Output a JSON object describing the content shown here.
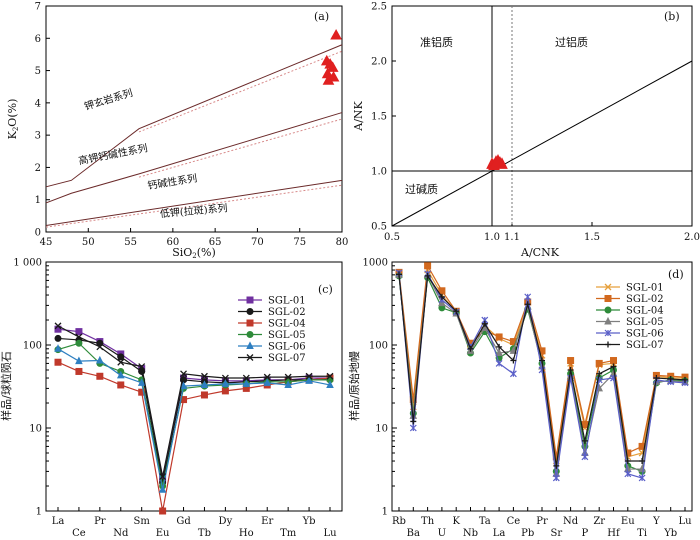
{
  "chart_data": [
    {
      "panel": "(a)",
      "type": "line",
      "xlabel": "SiO2(%)",
      "ylabel": "K2O(%)",
      "xlim": [
        45,
        80
      ],
      "ylim": [
        0,
        7
      ],
      "x_ticks": [
        "45",
        "50",
        "55",
        "60",
        "65",
        "70",
        "75",
        "80"
      ],
      "y_ticks": [
        "0",
        "1",
        "2",
        "3",
        "4",
        "5",
        "6",
        "7"
      ],
      "boundaries": [
        {
          "name": "upper",
          "solid": [
            [
              45,
              1.4
            ],
            [
              48,
              1.6
            ],
            [
              56,
              3.2
            ],
            [
              80,
              5.8
            ]
          ],
          "dotted": [
            [
              56,
              3.1
            ],
            [
              80,
              5.6
            ]
          ]
        },
        {
          "name": "middle",
          "solid": [
            [
              45,
              0.9
            ],
            [
              48,
              1.2
            ],
            [
              56,
              1.8
            ],
            [
              80,
              3.7
            ]
          ],
          "dotted": [
            [
              56,
              1.7
            ],
            [
              80,
              3.5
            ]
          ]
        },
        {
          "name": "lower",
          "solid": [
            [
              45,
              0.2
            ],
            [
              80,
              1.6
            ]
          ],
          "dotted": [
            [
              45,
              0.15
            ],
            [
              80,
              1.45
            ]
          ]
        }
      ],
      "field_labels": [
        {
          "text": "钾玄岩系列",
          "x": 52.5,
          "y": 4.0
        },
        {
          "text": "高钾钙碱性系列",
          "x": 53.0,
          "y": 2.3
        },
        {
          "text": "钙碱性系列",
          "x": 60.0,
          "y": 1.45
        },
        {
          "text": "低钾(拉斑)系列",
          "x": 62.5,
          "y": 0.55
        }
      ],
      "points": [
        [
          79.3,
          6.1
        ],
        [
          78.2,
          5.3
        ],
        [
          78.6,
          5.2
        ],
        [
          78.9,
          5.1
        ],
        [
          78.3,
          4.9
        ],
        [
          79.0,
          4.8
        ],
        [
          78.4,
          4.7
        ]
      ]
    },
    {
      "panel": "(b)",
      "type": "scatter",
      "xlabel": "A/CNK",
      "ylabel": "A/NK",
      "xlim": [
        0.5,
        2.0
      ],
      "ylim": [
        0.5,
        2.5
      ],
      "x_ticks": [
        "0.5",
        "1.0",
        "1.1",
        "1.5",
        "2.0"
      ],
      "y_ticks": [
        "0.5",
        "1.0",
        "1.5",
        "2.0",
        "2.5"
      ],
      "field_labels": [
        "准铝质",
        "过铝质",
        "过碱质"
      ],
      "points": [
        [
          1.0,
          1.06
        ],
        [
          1.02,
          1.08
        ],
        [
          1.04,
          1.07
        ],
        [
          1.01,
          1.05
        ],
        [
          1.03,
          1.09
        ],
        [
          1.05,
          1.06
        ]
      ]
    },
    {
      "panel": "(c)",
      "type": "line",
      "ylabel": "样品/球粒陨石",
      "yscale": "log",
      "ylim": [
        1,
        1000
      ],
      "y_ticks": [
        "1",
        "10",
        "100",
        "1 000"
      ],
      "categories": [
        "La",
        "Ce",
        "Pr",
        "Nd",
        "Sm",
        "Eu",
        "Gd",
        "Tb",
        "Dy",
        "Ho",
        "Er",
        "Tm",
        "Yb",
        "Lu"
      ],
      "series": [
        {
          "name": "SGL-01",
          "color": "#7030a0",
          "marker": "square",
          "values": [
            155,
            145,
            110,
            78,
            52,
            2.5,
            40,
            38,
            37,
            37,
            38,
            38,
            40,
            40
          ]
        },
        {
          "name": "SGL-02",
          "color": "#1a1a1a",
          "marker": "circle",
          "values": [
            120,
            115,
            105,
            72,
            48,
            2.2,
            38,
            36,
            35,
            36,
            37,
            38,
            38,
            39
          ]
        },
        {
          "name": "SGL-04",
          "color": "#c0392b",
          "marker": "square",
          "values": [
            62,
            48,
            42,
            33,
            27,
            1.0,
            22,
            25,
            28,
            30,
            33,
            36,
            38,
            40
          ]
        },
        {
          "name": "SGL-05",
          "color": "#2e8b3a",
          "marker": "circle",
          "values": [
            88,
            105,
            60,
            48,
            38,
            2.0,
            30,
            32,
            33,
            34,
            36,
            36,
            38,
            38
          ]
        },
        {
          "name": "SGL-06",
          "color": "#2e7fc1",
          "marker": "triangle",
          "values": [
            90,
            64,
            65,
            43,
            35,
            1.8,
            32,
            33,
            34,
            34,
            35,
            33,
            37,
            33
          ]
        },
        {
          "name": "SGL-07",
          "color": "#1a1a1a",
          "marker": "cross",
          "values": [
            170,
            125,
            95,
            62,
            55,
            2.6,
            45,
            42,
            40,
            40,
            41,
            41,
            42,
            42
          ]
        }
      ]
    },
    {
      "panel": "(d)",
      "type": "line",
      "ylabel": "样品/原始地幔",
      "yscale": "log",
      "ylim": [
        1,
        1000
      ],
      "y_ticks": [
        "1",
        "10",
        "100",
        "1000"
      ],
      "categories": [
        "Rb",
        "Ba",
        "Th",
        "U",
        "K",
        "Nb",
        "Ta",
        "La",
        "Ce",
        "Pb",
        "Pr",
        "Sr",
        "Nd",
        "P",
        "Zr",
        "Hf",
        "Eu",
        "Ti",
        "Y",
        "Yb",
        "Lu"
      ],
      "series": [
        {
          "name": "SGL-01",
          "color": "#e6a03c",
          "marker": "cross",
          "values": [
            720,
            18,
            800,
            400,
            250,
            100,
            170,
            120,
            100,
            300,
            75,
            4.0,
            60,
            10,
            58,
            60,
            4.5,
            5.0,
            42,
            40,
            40
          ]
        },
        {
          "name": "SGL-02",
          "color": "#d2691e",
          "marker": "square",
          "values": [
            750,
            22,
            900,
            450,
            255,
            105,
            150,
            125,
            110,
            330,
            85,
            4.5,
            65,
            11,
            60,
            65,
            5.0,
            6.0,
            43,
            42,
            41
          ]
        },
        {
          "name": "SGL-04",
          "color": "#2e8b3a",
          "marker": "circle",
          "values": [
            680,
            15,
            650,
            280,
            245,
            80,
            145,
            70,
            90,
            270,
            60,
            3.0,
            45,
            6,
            40,
            50,
            3.5,
            3.0,
            35,
            38,
            37
          ]
        },
        {
          "name": "SGL-05",
          "color": "#7f7f7f",
          "marker": "triangle",
          "values": [
            700,
            14,
            700,
            320,
            240,
            85,
            160,
            80,
            85,
            290,
            55,
            2.8,
            42,
            5,
            30,
            45,
            3.2,
            3.2,
            36,
            37,
            36
          ]
        },
        {
          "name": "SGL-06",
          "color": "#5a5fc8",
          "marker": "star",
          "values": [
            740,
            10,
            720,
            350,
            250,
            95,
            200,
            60,
            45,
            380,
            50,
            2.5,
            40,
            4.5,
            38,
            40,
            2.8,
            2.5,
            38,
            36,
            35
          ]
        },
        {
          "name": "SGL-07",
          "color": "#1a1a1a",
          "marker": "plus",
          "values": [
            710,
            12,
            680,
            380,
            255,
            90,
            180,
            95,
            65,
            310,
            65,
            3.5,
            50,
            7,
            45,
            55,
            4.0,
            4.0,
            40,
            39,
            38
          ]
        }
      ]
    }
  ]
}
